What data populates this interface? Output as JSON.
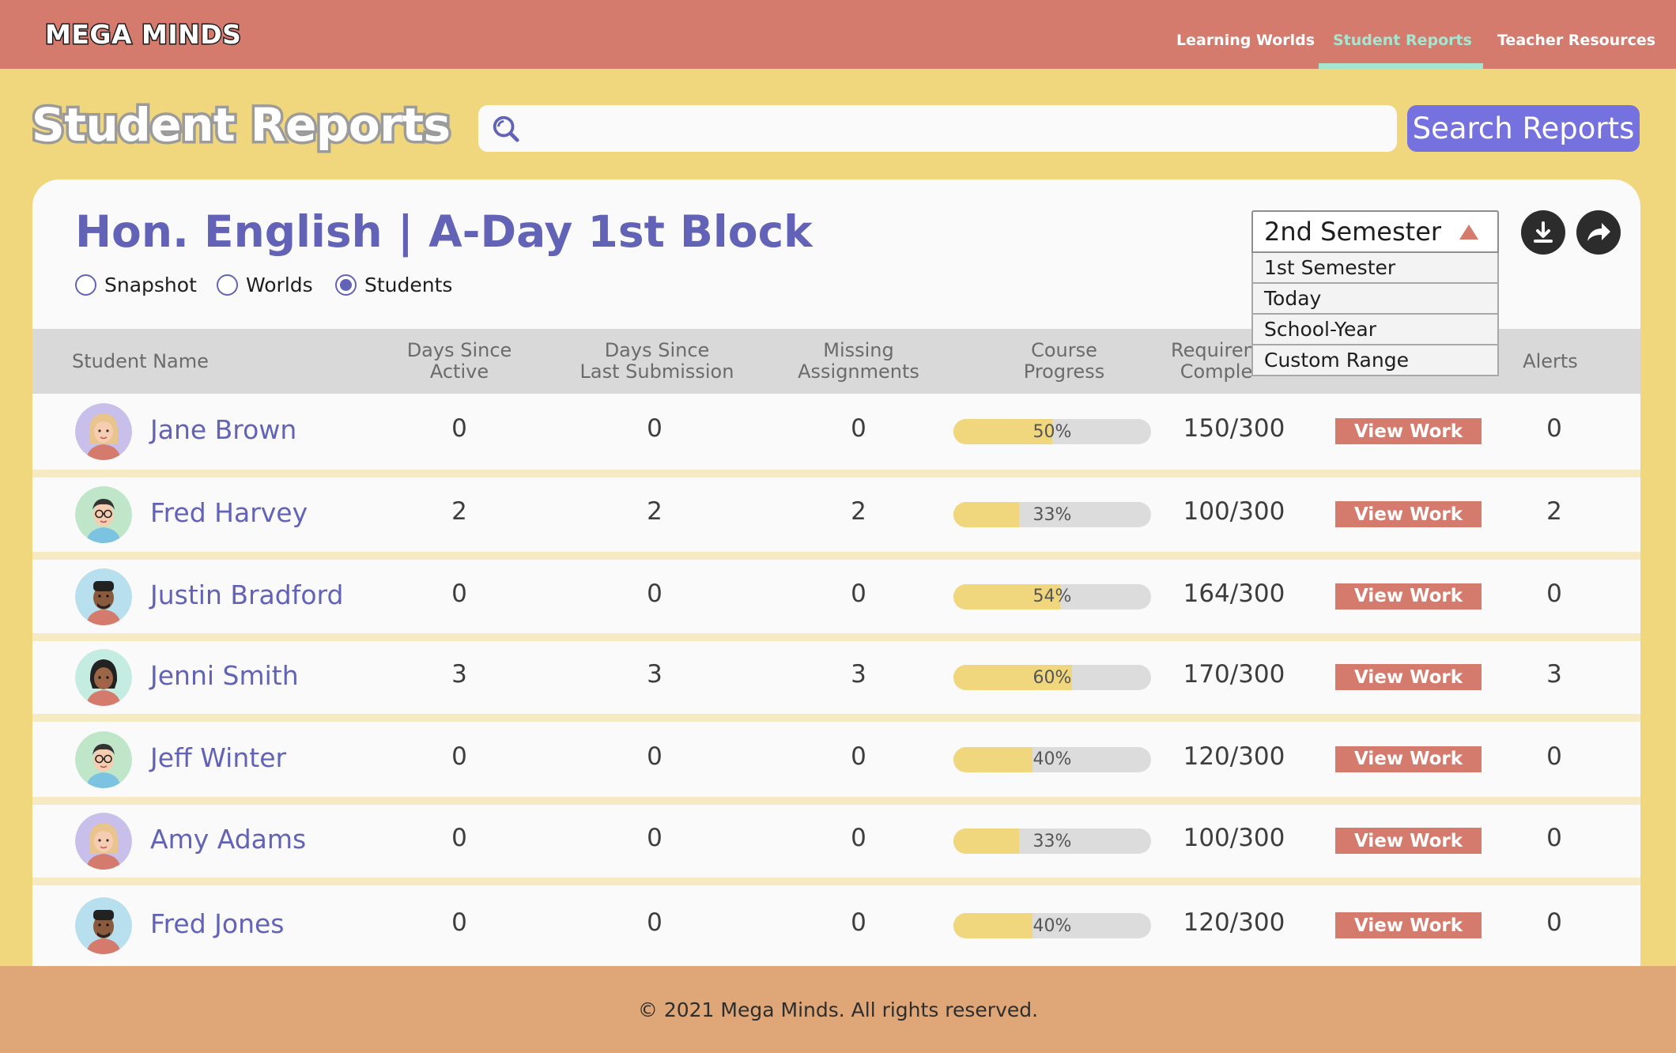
{
  "brand": "MEGA MINDS",
  "nav": {
    "items": [
      {
        "label": "Learning Worlds",
        "active": false
      },
      {
        "label": "Student Reports",
        "active": true
      },
      {
        "label": "Teacher Resources",
        "active": false
      }
    ]
  },
  "page_title": "Student Reports",
  "search": {
    "placeholder": "",
    "value": "",
    "button_label": "Search Reports",
    "icon": "search-icon"
  },
  "class_title": "Hon. English | A-Day 1st Block",
  "views": [
    {
      "label": "Snapshot",
      "checked": false
    },
    {
      "label": "Worlds",
      "checked": false
    },
    {
      "label": "Students",
      "checked": true
    }
  ],
  "semester_dropdown": {
    "selected": "2nd Semester",
    "options": [
      "1st Semester",
      "Today",
      "School-Year",
      "Custom Range"
    ],
    "open": true
  },
  "actions": {
    "download_icon": "download-icon",
    "share_icon": "share-icon"
  },
  "table": {
    "headers": {
      "name": "Student Name",
      "days_active": "Days Since\nActive",
      "days_submission": "Days Since\nLast Submission",
      "missing": "Missing\nAssignments",
      "progress": "Course\nProgress",
      "requirements": "Requirem\nComple",
      "work": "",
      "alerts": "Alerts"
    },
    "view_work_label": "View Work",
    "rows": [
      {
        "name": "Jane Brown",
        "avatar": "female-blonde",
        "days_active": "0",
        "days_submission": "0",
        "missing": "0",
        "progress": 50,
        "progress_label": "50%",
        "requirements": "150/300",
        "alerts": "0"
      },
      {
        "name": "Fred Harvey",
        "avatar": "male-glasses",
        "days_active": "2",
        "days_submission": "2",
        "missing": "2",
        "progress": 33,
        "progress_label": "33%",
        "requirements": "100/300",
        "alerts": "2"
      },
      {
        "name": "Justin Bradford",
        "avatar": "male-dark",
        "days_active": "0",
        "days_submission": "0",
        "missing": "0",
        "progress": 54,
        "progress_label": "54%",
        "requirements": "164/300",
        "alerts": "0"
      },
      {
        "name": "Jenni Smith",
        "avatar": "female-dark",
        "days_active": "3",
        "days_submission": "3",
        "missing": "3",
        "progress": 60,
        "progress_label": "60%",
        "requirements": "170/300",
        "alerts": "3"
      },
      {
        "name": "Jeff Winter",
        "avatar": "male-glasses",
        "days_active": "0",
        "days_submission": "0",
        "missing": "0",
        "progress": 40,
        "progress_label": "40%",
        "requirements": "120/300",
        "alerts": "0"
      },
      {
        "name": "Amy Adams",
        "avatar": "female-blonde",
        "days_active": "0",
        "days_submission": "0",
        "missing": "0",
        "progress": 33,
        "progress_label": "33%",
        "requirements": "100/300",
        "alerts": "0"
      },
      {
        "name": "Fred Jones",
        "avatar": "male-dark",
        "days_active": "0",
        "days_submission": "0",
        "missing": "0",
        "progress": 40,
        "progress_label": "40%",
        "requirements": "120/300",
        "alerts": "0"
      }
    ]
  },
  "footer": "© 2021 Mega Minds. All rights reserved.",
  "colors": {
    "header": "#d57b6d",
    "background": "#f0d67d",
    "accent_purple": "#6263b6",
    "button_purple": "#7571de",
    "nav_active": "#a6e5d0",
    "footer": "#dfa677"
  }
}
